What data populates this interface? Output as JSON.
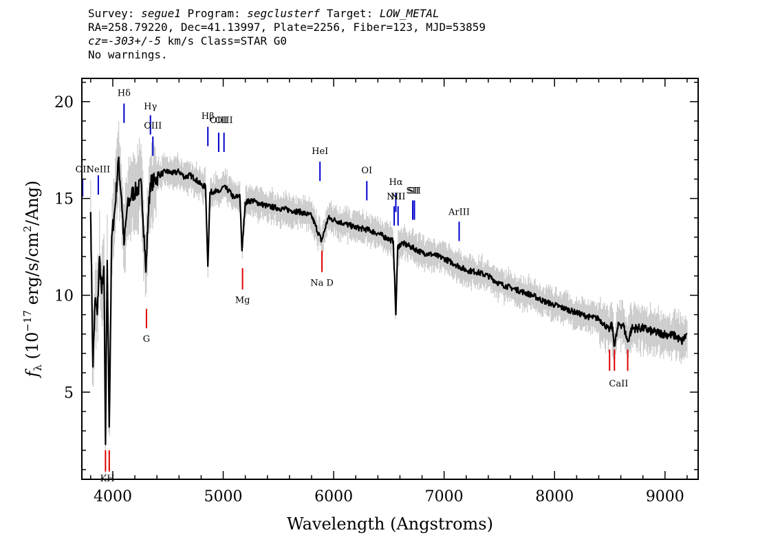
{
  "header": {
    "line1": {
      "survey_label": "Survey:",
      "survey_value": "segue1",
      "program_label": "Program:",
      "program_value": "segclusterf",
      "target_label": "Target:",
      "target_value": "LOW_METAL"
    },
    "line2": "RA=258.79220, Dec=41.13997, Plate=2256, Fiber=123, MJD=53859",
    "line3": {
      "cz_label": "cz",
      "cz_value": "=-303+/-5",
      "rest": " km/s Class=STAR G0"
    },
    "line4": "No warnings."
  },
  "colors": {
    "flux": "#000000",
    "error": "#c8c8c8",
    "emission_marker": "#0000cc",
    "absorption_marker": "#dd0000"
  },
  "chart_data": {
    "type": "line",
    "xlabel": "Wavelength (Angstroms)",
    "ylabel": "f_λ (10^-17 erg/s/cm^2/Ang)",
    "ylabel_parts": {
      "f": "f",
      "sub": "λ",
      "pre": " (10",
      "exp": "−17",
      "mid": " erg/s/cm",
      "exp2": "2",
      "post": "/Ang)"
    },
    "xlim": [
      3720,
      9300
    ],
    "ylim": [
      0.5,
      21.2
    ],
    "x_ticks": [
      4000,
      5000,
      6000,
      7000,
      8000,
      9000
    ],
    "y_ticks": [
      5,
      10,
      15,
      20
    ],
    "x_tick_labels": [
      "4000",
      "5000",
      "6000",
      "7000",
      "8000",
      "9000"
    ],
    "y_tick_labels": [
      "5",
      "10",
      "15",
      "20"
    ],
    "series": [
      {
        "x": [
          3800,
          3820,
          3840,
          3860,
          3880,
          3900,
          3920,
          3934,
          3950,
          3968,
          3990,
          4020,
          4050,
          4080,
          4102,
          4130,
          4170,
          4210,
          4260,
          4300,
          4320,
          4340,
          4380,
          4420,
          4480,
          4550,
          4600,
          4650,
          4700,
          4750,
          4800,
          4840,
          4861,
          4880,
          4920,
          4960,
          5000,
          5050,
          5100,
          5150,
          5170,
          5200,
          5260,
          5300,
          5400,
          5500,
          5600,
          5700,
          5800,
          5890,
          5950,
          6000,
          6100,
          6200,
          6300,
          6400,
          6500,
          6540,
          6563,
          6580,
          6620,
          6700,
          6800,
          6900,
          7000,
          7100,
          7200,
          7300,
          7400,
          7500,
          7600,
          7700,
          7800,
          7900,
          8000,
          8100,
          8200,
          8300,
          8400,
          8498,
          8520,
          8542,
          8580,
          8620,
          8662,
          8700,
          8800,
          8900,
          9000,
          9100,
          9150,
          9200
        ],
        "y": [
          14.3,
          6.3,
          9.8,
          9.0,
          12.0,
          10.1,
          11.5,
          2.3,
          11.8,
          3.2,
          13.0,
          14.5,
          17.0,
          15.0,
          12.6,
          14.5,
          15.2,
          15.4,
          15.7,
          11.2,
          14.0,
          15.8,
          15.9,
          16.2,
          16.4,
          16.3,
          16.4,
          16.1,
          16.2,
          16.0,
          15.7,
          15.6,
          11.5,
          15.3,
          15.4,
          15.3,
          15.6,
          15.4,
          15.0,
          15.2,
          12.3,
          14.8,
          14.9,
          14.8,
          14.6,
          14.5,
          14.4,
          14.3,
          14.1,
          12.8,
          14.0,
          13.9,
          13.7,
          13.5,
          13.4,
          13.2,
          12.9,
          12.8,
          9.0,
          12.5,
          12.7,
          12.5,
          12.2,
          12.1,
          11.9,
          11.6,
          11.3,
          11.2,
          11.0,
          10.6,
          10.4,
          10.2,
          10.0,
          9.7,
          9.5,
          9.3,
          9.1,
          8.9,
          8.8,
          8.2,
          8.5,
          7.4,
          8.5,
          8.5,
          7.6,
          8.3,
          8.3,
          8.1,
          8.0,
          7.9,
          7.6,
          8.0
        ]
      }
    ],
    "spectral_lines": {
      "emission": [
        {
          "label": "OII",
          "wave": 3727,
          "y1": 15.1,
          "y2": 16.0,
          "ly": 16.35
        },
        {
          "label": "NeIII",
          "wave": 3869,
          "y1": 15.2,
          "y2": 16.2,
          "ly": 16.35
        },
        {
          "label": "Hδ",
          "wave": 4102,
          "y1": 18.9,
          "y2": 19.9,
          "ly": 20.3
        },
        {
          "label": "Hγ",
          "wave": 4341,
          "y1": 18.3,
          "y2": 19.3,
          "ly": 19.6
        },
        {
          "label": "OIII",
          "wave": 4363,
          "y1": 17.2,
          "y2": 18.2,
          "ly": 18.6
        },
        {
          "label": "Hβ",
          "wave": 4861,
          "y1": 17.7,
          "y2": 18.7,
          "ly": 19.1
        },
        {
          "label": "OIII",
          "wave": 4959,
          "y1": 17.4,
          "y2": 18.4,
          "ly": 18.9
        },
        {
          "label": "OIII",
          "wave": 5007,
          "y1": 17.4,
          "y2": 18.4,
          "ly": 18.9
        },
        {
          "label": "HeI",
          "wave": 5876,
          "y1": 15.9,
          "y2": 16.9,
          "ly": 17.3
        },
        {
          "label": "OI",
          "wave": 6300,
          "y1": 14.9,
          "y2": 15.9,
          "ly": 16.3
        },
        {
          "label": "NII",
          "wave": 6548,
          "y1": 13.6,
          "y2": 14.6,
          "ly": 14.95
        },
        {
          "label": "Hα",
          "wave": 6563,
          "y1": 14.3,
          "y2": 15.3,
          "ly": 15.7
        },
        {
          "label": "NII",
          "wave": 6583,
          "y1": 13.6,
          "y2": 14.6,
          "ly": 14.95
        },
        {
          "label": "SII",
          "wave": 6716,
          "y1": 13.9,
          "y2": 14.9,
          "ly": 15.25
        },
        {
          "label": "SII",
          "wave": 6731,
          "y1": 13.9,
          "y2": 14.9,
          "ly": 15.25
        },
        {
          "label": "ArIII",
          "wave": 7136,
          "y1": 12.8,
          "y2": 13.8,
          "ly": 14.15
        }
      ],
      "absorption": [
        {
          "label": "K",
          "wave": 3934,
          "y1": 0.9,
          "y2": 2.0,
          "ly": 0.4
        },
        {
          "label": "H",
          "wave": 3968,
          "y1": 0.9,
          "y2": 2.0,
          "ly": 0.4
        },
        {
          "label": "G",
          "wave": 4305,
          "y1": 8.3,
          "y2": 9.3,
          "ly": 7.6
        },
        {
          "label": "Mg",
          "wave": 5175,
          "y1": 10.3,
          "y2": 11.4,
          "ly": 9.6
        },
        {
          "label": "Na D",
          "wave": 5894,
          "y1": 11.2,
          "y2": 12.3,
          "ly": 10.5
        },
        {
          "label": "CaII",
          "wave": 8498,
          "y1": 6.1,
          "y2": 7.2,
          "ly": 5.3
        },
        {
          "label": "CaII",
          "wave": 8542,
          "y1": 6.1,
          "y2": 7.2,
          "ly": 5.3
        },
        {
          "label": "CaII",
          "wave": 8662,
          "y1": 6.1,
          "y2": 7.2,
          "ly": 5.3
        }
      ]
    },
    "absorption_label_text": {
      "KH": "KH",
      "CaII": "CaII"
    }
  }
}
